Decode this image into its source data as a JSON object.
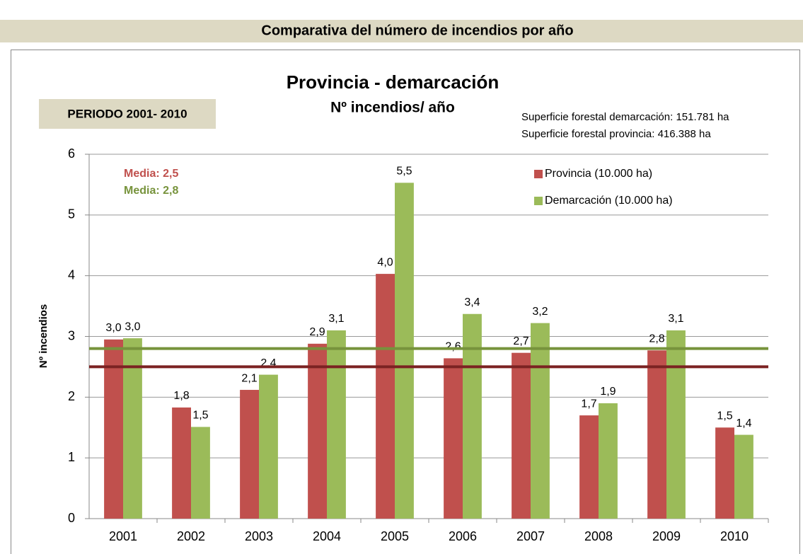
{
  "header": {
    "title": "Comparativa del número de incendios por año"
  },
  "chart_data": {
    "type": "bar",
    "title": "Provincia - demarcación",
    "subtitle": "Nº incendios/ año",
    "period": "PERIODO 2001- 2010",
    "notes": [
      "Superficie forestal demarcación: 151.781 ha",
      "Superficie forestal provincia: 416.388 ha"
    ],
    "y_label": "Nº incendios",
    "categories": [
      "2001",
      "2002",
      "2003",
      "2004",
      "2005",
      "2006",
      "2007",
      "2008",
      "2009",
      "2010"
    ],
    "series": [
      {
        "name": "Provincia (10.000 ha)",
        "color": "#c0504d",
        "values": [
          2.95,
          1.83,
          2.12,
          2.88,
          4.03,
          2.64,
          2.73,
          1.7,
          2.77,
          1.5
        ],
        "value_labels": [
          "3,0",
          "1,8",
          "2,1",
          "2,9",
          "4,0",
          "2,6",
          "2,7",
          "1,7",
          "2,8",
          "1,5"
        ]
      },
      {
        "name": "Demarcación (10.000 ha)",
        "color": "#9bbb59",
        "values": [
          2.97,
          1.51,
          2.37,
          3.1,
          5.53,
          3.37,
          3.22,
          1.9,
          3.1,
          1.38
        ],
        "value_labels": [
          "3,0",
          "1,5",
          "2,4",
          "3,1",
          "5,5",
          "3,4",
          "3,2",
          "1,9",
          "3,1",
          "1,4"
        ]
      }
    ],
    "reference_lines": [
      {
        "label": "Media: 2,5",
        "value": 2.5,
        "color": "#7b2222",
        "text_color": "#c0504d"
      },
      {
        "label": "Media: 2,8",
        "value": 2.8,
        "color": "#77933c",
        "text_color": "#77933c"
      }
    ],
    "ylim": [
      0,
      6
    ],
    "yticks": [
      0,
      1,
      2,
      3,
      4,
      5,
      6
    ],
    "grid": true
  }
}
